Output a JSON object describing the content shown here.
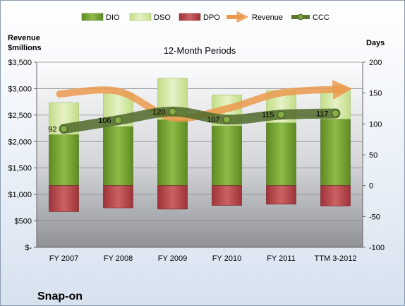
{
  "chart_data": {
    "type": "bar",
    "title": "12-Month Periods",
    "company": "Snap-on",
    "left_axis_label_line1": "Revenue",
    "left_axis_label_line2": "$millions",
    "right_axis_label": "Days",
    "categories": [
      "FY 2007",
      "FY 2008",
      "FY 2009",
      "FY 2010",
      "FY 2011",
      "TTM 3-2012"
    ],
    "ylim_left": [
      0,
      3500
    ],
    "ylim_right": [
      -100,
      200
    ],
    "left_ticks": [
      "$-",
      "$500",
      "$1,000",
      "$1,500",
      "$2,000",
      "$2,500",
      "$3,000",
      "$3,500"
    ],
    "right_ticks": [
      "-100",
      "-50",
      "0",
      "50",
      "100",
      "150",
      "200"
    ],
    "series": [
      {
        "name": "DIO",
        "axis": "right",
        "values": [
          83,
          96,
          107,
          97,
          102,
          108
        ],
        "color": "#77a135"
      },
      {
        "name": "DSO",
        "axis": "right",
        "values": [
          51,
          54,
          67,
          50,
          52,
          47
        ],
        "color": "#d6e9a8"
      },
      {
        "name": "DPO",
        "axis": "right",
        "values": [
          -42,
          -36,
          -38,
          -32,
          -30,
          -33
        ],
        "color": "#b84b4e"
      },
      {
        "name": "Revenue",
        "axis": "left",
        "values": [
          2900,
          2950,
          2450,
          2620,
          2920,
          2990
        ],
        "color": "#eb9a4e"
      },
      {
        "name": "CCC",
        "axis": "right",
        "values": [
          92,
          106,
          120,
          107,
          115,
          117
        ],
        "color": "#5a7530"
      }
    ],
    "legend_position": "top",
    "grid": true
  }
}
